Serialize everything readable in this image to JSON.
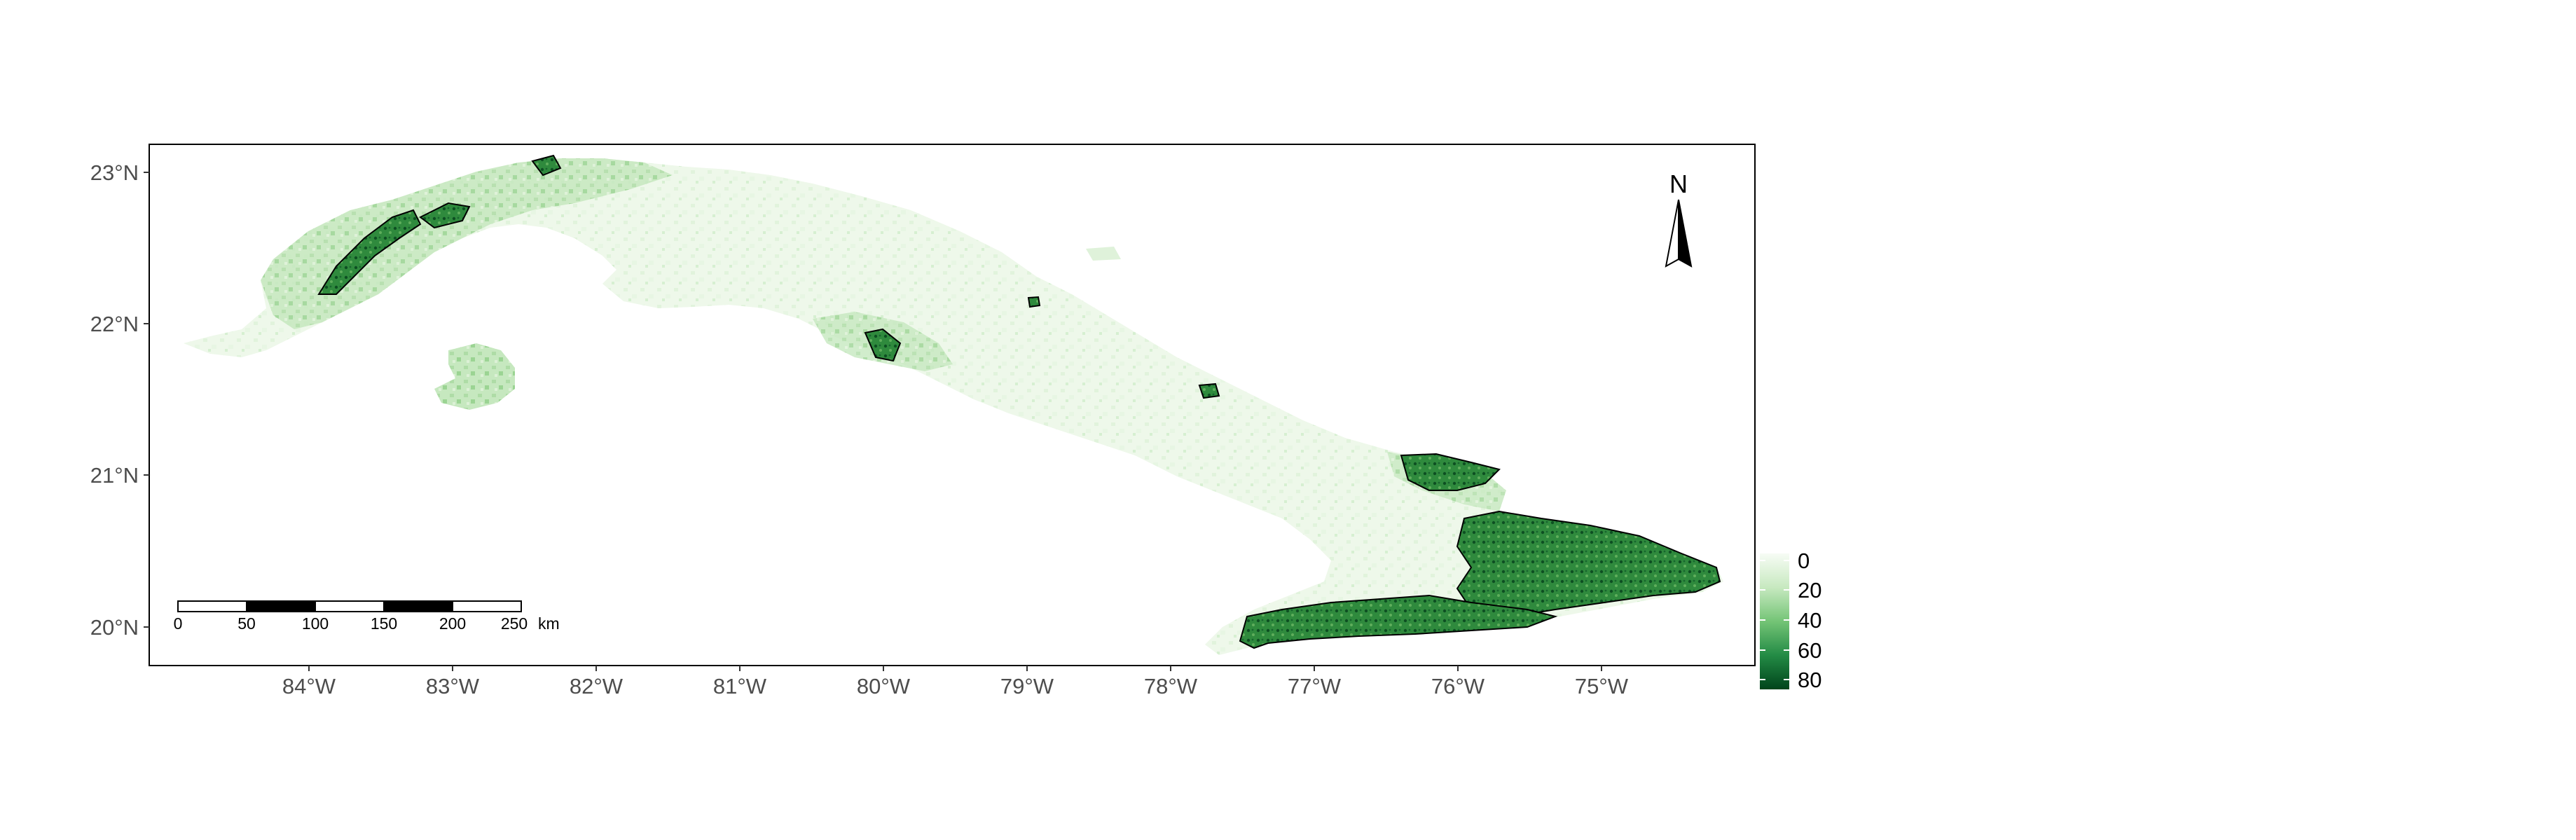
{
  "map": {
    "y_axis_labels": [
      "23°N",
      "22°N",
      "21°N",
      "20°N"
    ],
    "x_axis_labels": [
      "84°W",
      "83°W",
      "82°W",
      "81°W",
      "80°W",
      "79°W",
      "78°W",
      "77°W",
      "76°W",
      "75°W"
    ],
    "north_arrow_label": "N",
    "scale_bar": {
      "tick_labels": [
        "0",
        "50",
        "100",
        "150",
        "200",
        "250"
      ],
      "unit": "km"
    },
    "legend": {
      "labels": [
        "0",
        "20",
        "40",
        "60",
        "80"
      ],
      "colors": [
        "#f7fcf5",
        "#c7e9c0",
        "#74c476",
        "#238b45",
        "#00441b"
      ]
    },
    "colors": {
      "land_light": "#eef8ea",
      "land_mid": "#cfeccb",
      "land_green": "#a8dca0",
      "dense_green": "#2e8b3f",
      "dark_green": "#0e5e2a",
      "frame": "#000000"
    }
  }
}
